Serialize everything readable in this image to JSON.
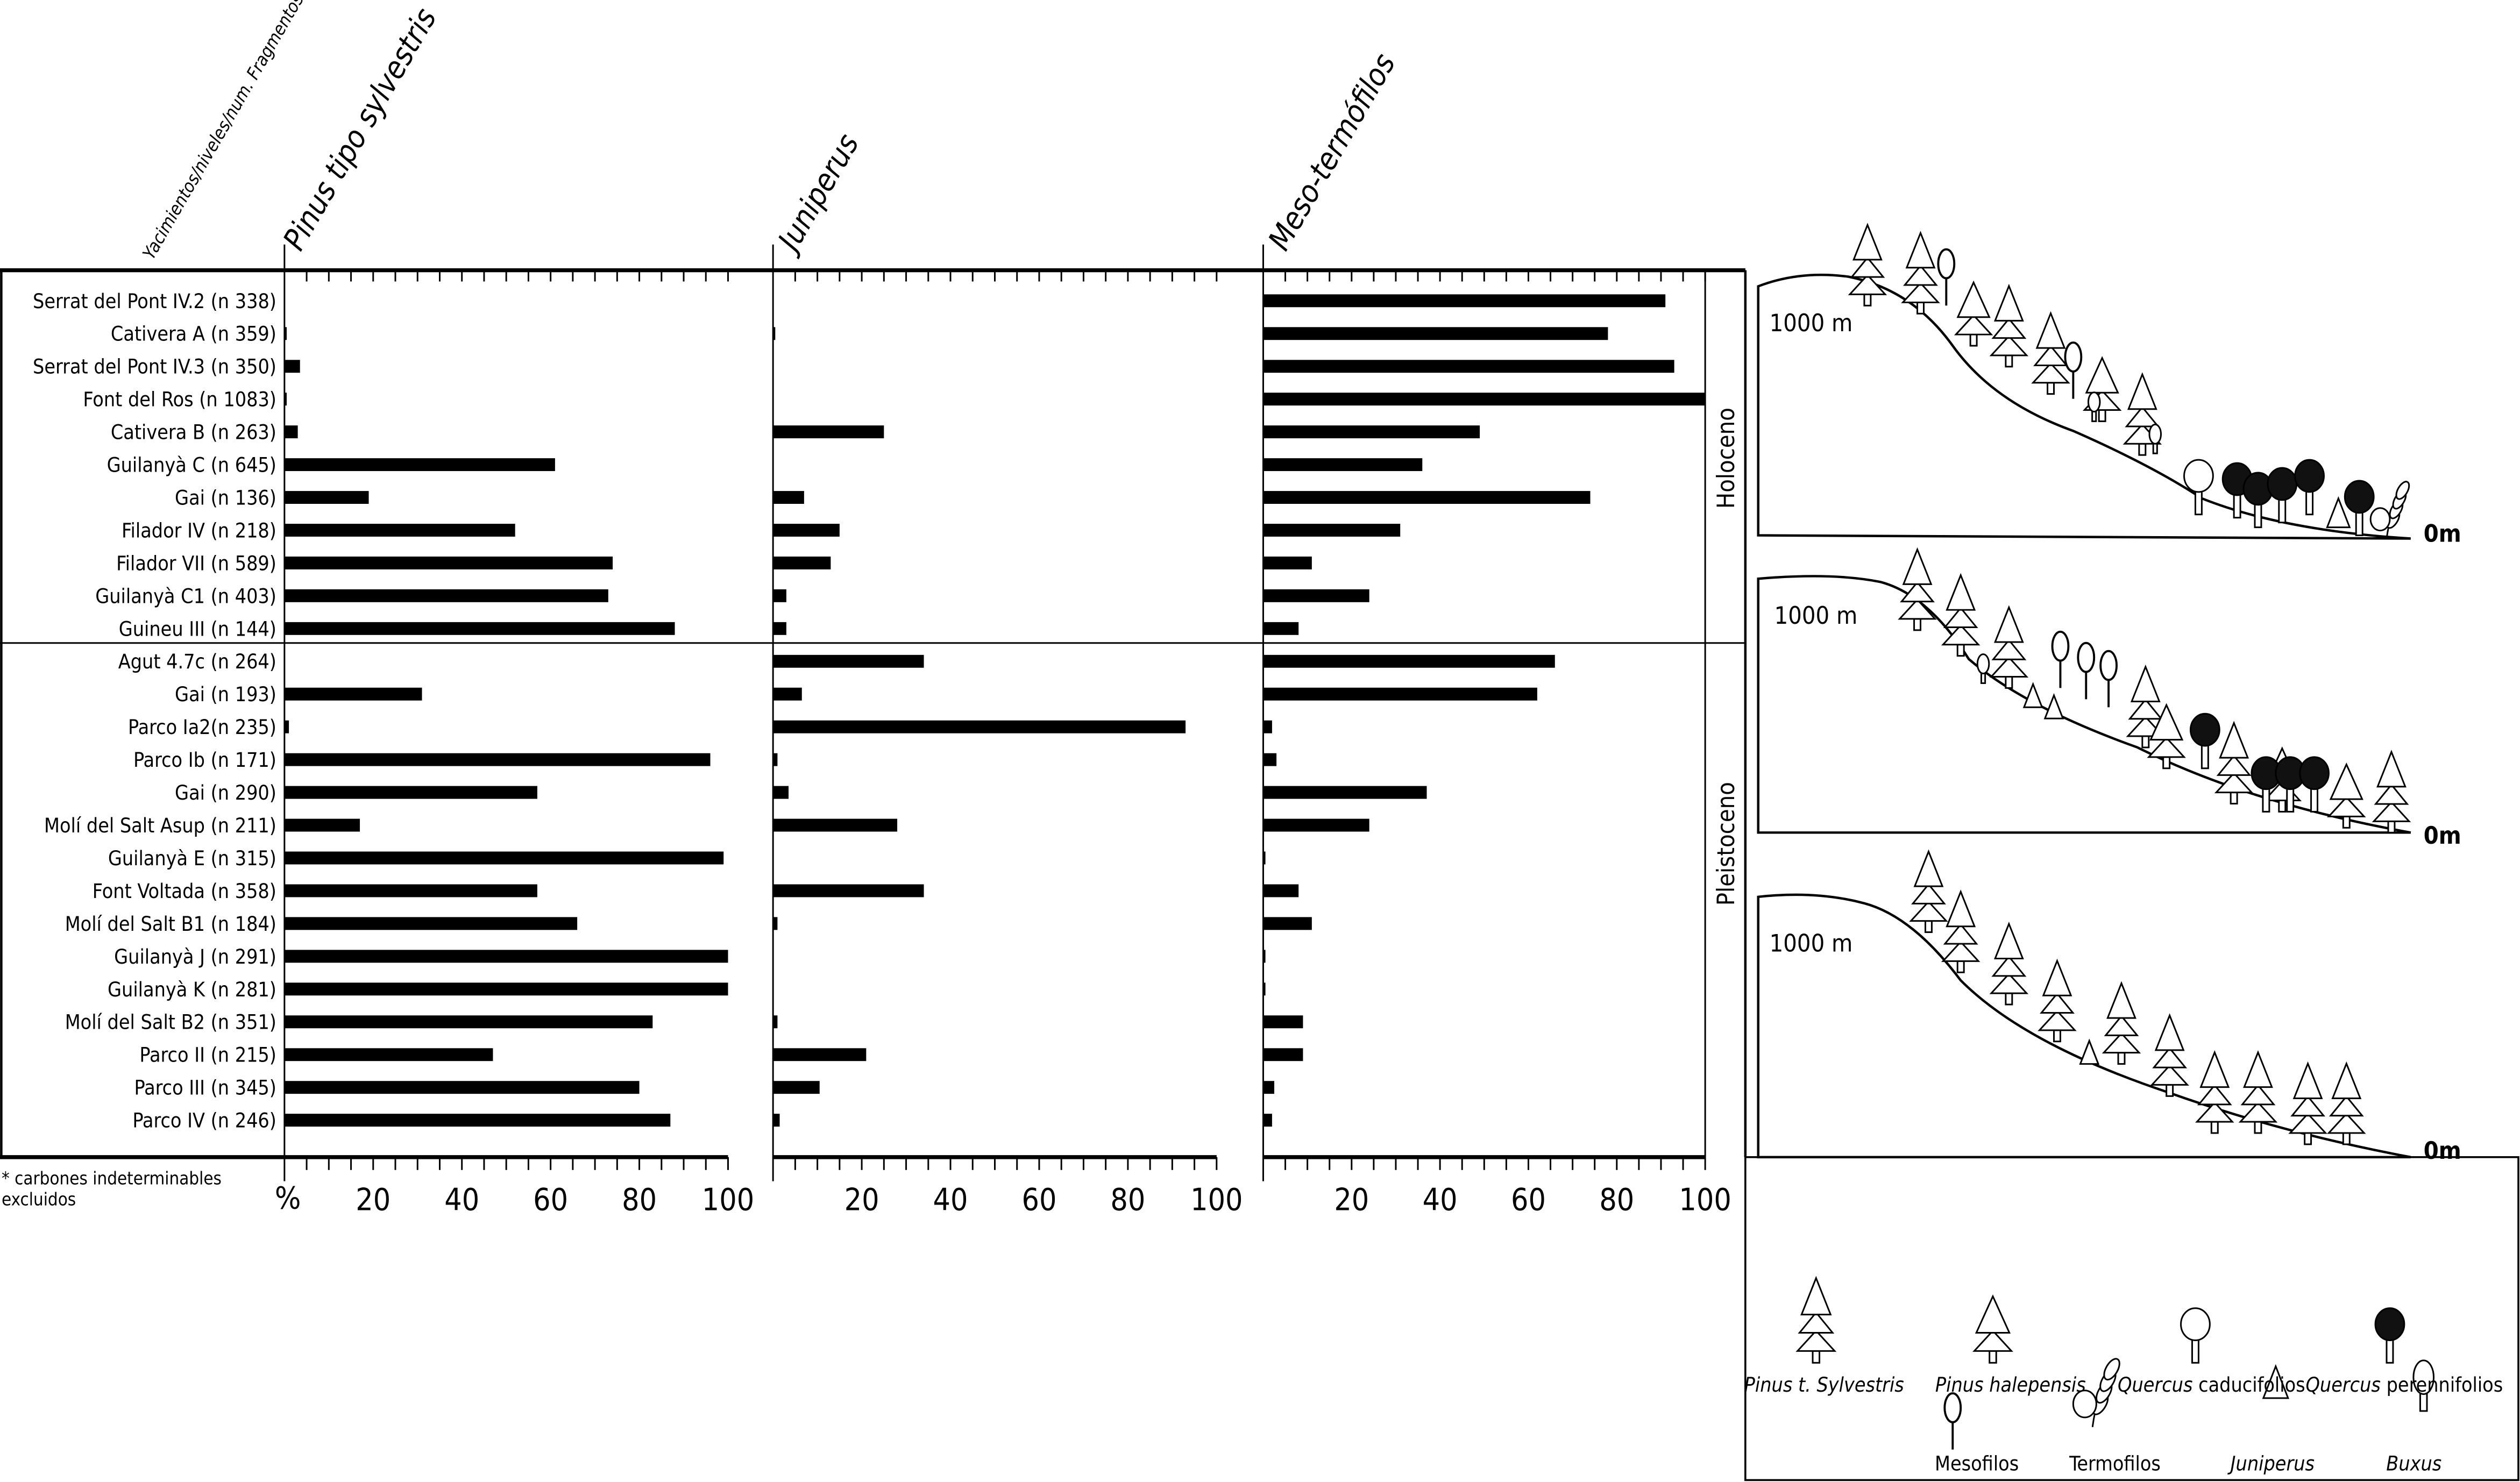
{
  "header": {
    "row_axis_title": "Yacimientos/niveles/num. Fragmentos*",
    "footnote_line1": "* carbones indeterminables",
    "footnote_line2": "excluidos"
  },
  "periods": [
    "Holoceno",
    "Pleistoceno"
  ],
  "landscape": {
    "altitude_top": "1000 m",
    "altitude_bottom": "0m"
  },
  "legend": {
    "items": [
      {
        "italic": "Pinus t. Sylvestris",
        "plain": "",
        "icon": "pine-three-tier-icon"
      },
      {
        "italic": "Pinus halepensis",
        "plain": "",
        "icon": "pine-two-tier-icon"
      },
      {
        "italic": "Quercus",
        "plain": " caducifolios",
        "icon": "deciduous-oak-icon"
      },
      {
        "italic": "Quercus",
        "plain": " perennifolios",
        "icon": "evergreen-oak-icon"
      },
      {
        "italic": "",
        "plain": "Mesofilos",
        "icon": "mesophilous-tree-icon"
      },
      {
        "italic": "",
        "plain": "Termofilos",
        "icon": "thermophilous-shrub-icon"
      },
      {
        "italic": "Juniperus",
        "plain": "",
        "icon": "juniper-triangle-icon"
      },
      {
        "italic": "Buxus",
        "plain": "",
        "icon": "boxwood-icon"
      }
    ]
  },
  "chart_data": {
    "type": "bar",
    "orientation": "horizontal",
    "xlabel": "%",
    "xlim": [
      0,
      100
    ],
    "xticks": [
      "20",
      "40",
      "60",
      "80",
      "100"
    ],
    "percent_label": "%",
    "categories": [
      "Serrat del Pont IV.2 (n 338)",
      "Cativera A (n 359)",
      "Serrat del Pont IV.3 (n 350)",
      "Font del Ros (n 1083)",
      "Cativera B (n 263)",
      "Guilanyà C (n 645)",
      "Gai (n 136)",
      "Filador IV (n 218)",
      "Filador VII (n 589)",
      "Guilanyà C1 (n 403)",
      "Guineu III (n 144)",
      "Agut 4.7c (n 264)",
      "Gai (n 193)",
      "Parco Ia2(n 235)",
      "Parco Ib (n 171)",
      "Gai (n 290)",
      "Molí del Salt Asup (n 211)",
      "Guilanyà E (n 315)",
      "Font Voltada (n 358)",
      "Molí del Salt B1 (n 184)",
      "Guilanyà J (n 291)",
      "Guilanyà K (n 281)",
      "Molí del Salt B2 (n 351)",
      "Parco II (n 215)",
      "Parco III (n 345)",
      "Parco IV (n 246)"
    ],
    "period_of_category": [
      "Holoceno",
      "Holoceno",
      "Holoceno",
      "Holoceno",
      "Holoceno",
      "Holoceno",
      "Holoceno",
      "Holoceno",
      "Holoceno",
      "Holoceno",
      "Holoceno",
      "Pleistoceno",
      "Pleistoceno",
      "Pleistoceno",
      "Pleistoceno",
      "Pleistoceno",
      "Pleistoceno",
      "Pleistoceno",
      "Pleistoceno",
      "Pleistoceno",
      "Pleistoceno",
      "Pleistoceno",
      "Pleistoceno",
      "Pleistoceno",
      "Pleistoceno",
      "Pleistoceno"
    ],
    "series": [
      {
        "name": "Pinus tipo sylvestris",
        "values": [
          0,
          0.5,
          3.5,
          0.5,
          3,
          61,
          19,
          52,
          74,
          73,
          88,
          0,
          31,
          1,
          96,
          57,
          17,
          99,
          57,
          66,
          100,
          100,
          83,
          47,
          80,
          87
        ]
      },
      {
        "name": "Juniperus",
        "values": [
          0,
          0.5,
          0,
          0,
          25,
          0,
          7,
          15,
          13,
          3,
          3,
          34,
          6.5,
          93,
          1,
          3.5,
          28,
          0,
          34,
          1,
          0,
          0,
          1,
          21,
          10.5,
          1.5
        ]
      },
      {
        "name": "Meso-termófilos",
        "values": [
          91,
          78,
          93,
          100,
          49,
          36,
          74,
          31,
          11,
          24,
          8,
          66,
          62,
          2,
          3,
          37,
          24,
          0.5,
          8,
          11,
          0.5,
          0.5,
          9,
          9,
          2.5,
          2
        ]
      }
    ],
    "bar_color": "#000000"
  }
}
